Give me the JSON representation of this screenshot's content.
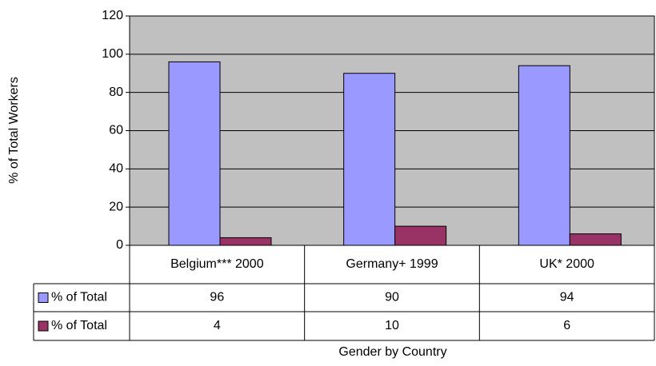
{
  "chart_data": {
    "type": "bar",
    "x_label": "Gender by Country",
    "y_label": "% of Total Workers",
    "categories": [
      "Belgium*** 2000",
      "Germany+ 1999",
      "UK* 2000"
    ],
    "series": [
      {
        "name": "% of Total",
        "color": "#9999ff",
        "values": [
          96,
          90,
          94
        ]
      },
      {
        "name": "% of Total",
        "color": "#993366",
        "values": [
          4,
          10,
          6
        ]
      }
    ],
    "ylim": [
      0,
      120
    ],
    "yticks": [
      0,
      20,
      40,
      60,
      80,
      100,
      120
    ],
    "grid": true,
    "plot_background": "#c0c0c0"
  }
}
